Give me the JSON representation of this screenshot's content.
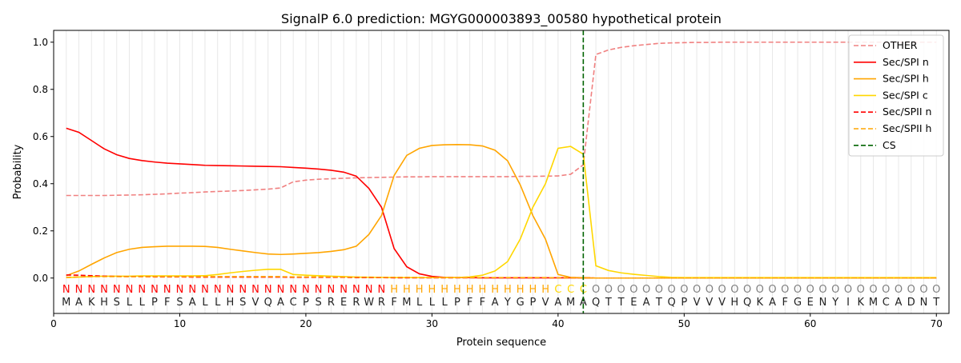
{
  "chart_data": {
    "type": "line",
    "title": "SignalP 6.0 prediction: MGYG000003893_00580 hypothetical protein",
    "xlabel": "Protein sequence",
    "ylabel": "Probability",
    "xlim": [
      0,
      71
    ],
    "ylim": [
      -0.15,
      1.05
    ],
    "xticks": [
      0,
      10,
      20,
      30,
      40,
      50,
      60,
      70
    ],
    "yticks": [
      0.0,
      0.2,
      0.4,
      0.6,
      0.8,
      1.0
    ],
    "ytick_labels": [
      "0.0",
      "0.2",
      "0.4",
      "0.6",
      "0.8",
      "1.0"
    ],
    "legend_position": "top-right",
    "sequence": [
      "M",
      "A",
      "K",
      "H",
      "S",
      "L",
      "L",
      "P",
      "F",
      "S",
      "A",
      "L",
      "L",
      "H",
      "S",
      "V",
      "Q",
      "A",
      "C",
      "P",
      "S",
      "R",
      "E",
      "R",
      "W",
      "R",
      "F",
      "M",
      "L",
      "L",
      "L",
      "P",
      "F",
      "F",
      "A",
      "Y",
      "G",
      "P",
      "V",
      "A",
      "M",
      "A",
      "Q",
      "T",
      "T",
      "E",
      "A",
      "T",
      "Q",
      "P",
      "V",
      "V",
      "V",
      "H",
      "Q",
      "K",
      "A",
      "F",
      "G",
      "E",
      "N",
      "Y",
      "I",
      "K",
      "M",
      "C",
      "A",
      "D",
      "N",
      "T"
    ],
    "labels": [
      "N",
      "N",
      "N",
      "N",
      "N",
      "N",
      "N",
      "N",
      "N",
      "N",
      "N",
      "N",
      "N",
      "N",
      "N",
      "N",
      "N",
      "N",
      "N",
      "N",
      "N",
      "N",
      "N",
      "N",
      "N",
      "N",
      "H",
      "H",
      "H",
      "H",
      "H",
      "H",
      "H",
      "H",
      "H",
      "H",
      "H",
      "H",
      "H",
      "C",
      "C",
      "C",
      "O",
      "O",
      "O",
      "O",
      "O",
      "O",
      "O",
      "O",
      "O",
      "O",
      "O",
      "O",
      "O",
      "O",
      "O",
      "O",
      "O",
      "O",
      "O",
      "O",
      "O",
      "O",
      "O",
      "O",
      "O",
      "O",
      "O",
      "O"
    ],
    "label_colors": {
      "N": "#ff0000",
      "H": "#ffa500",
      "C": "#ffd700",
      "O": "#808080"
    },
    "cs_position": 42,
    "series": [
      {
        "name": "OTHER",
        "color": "#f08080",
        "dash": true,
        "values": [
          0.35,
          0.35,
          0.35,
          0.35,
          0.351,
          0.352,
          0.353,
          0.355,
          0.357,
          0.36,
          0.362,
          0.365,
          0.367,
          0.369,
          0.371,
          0.374,
          0.377,
          0.382,
          0.408,
          0.415,
          0.419,
          0.421,
          0.423,
          0.425,
          0.426,
          0.427,
          0.428,
          0.429,
          0.429,
          0.43,
          0.43,
          0.43,
          0.43,
          0.43,
          0.43,
          0.43,
          0.431,
          0.431,
          0.432,
          0.433,
          0.44,
          0.48,
          0.948,
          0.967,
          0.978,
          0.985,
          0.99,
          0.995,
          0.997,
          0.998,
          0.999,
          0.999,
          1,
          1,
          1,
          1,
          1,
          1,
          1,
          1,
          1,
          1,
          1,
          1,
          1,
          1,
          1,
          1,
          1,
          1
        ]
      },
      {
        "name": "Sec/SPI n",
        "color": "#ff0000",
        "dash": false,
        "values": [
          0.635,
          0.618,
          0.583,
          0.548,
          0.523,
          0.507,
          0.498,
          0.492,
          0.487,
          0.484,
          0.481,
          0.478,
          0.477,
          0.476,
          0.475,
          0.474,
          0.473,
          0.472,
          0.469,
          0.466,
          0.462,
          0.457,
          0.449,
          0.432,
          0.38,
          0.3,
          0.125,
          0.048,
          0.018,
          0.007,
          0.003,
          0.002,
          0.002,
          0.001,
          0.001,
          0.001,
          0.001,
          0.001,
          0.001,
          0.001,
          0.001,
          0.001,
          0,
          0,
          0,
          0,
          0,
          0,
          0,
          0,
          0,
          0,
          0,
          0,
          0,
          0,
          0,
          0,
          0,
          0,
          0,
          0,
          0,
          0,
          0,
          0,
          0,
          0,
          0,
          0
        ]
      },
      {
        "name": "Sec/SPI h",
        "color": "#ffa500",
        "dash": false,
        "values": [
          0.01,
          0.03,
          0.058,
          0.085,
          0.108,
          0.122,
          0.13,
          0.133,
          0.135,
          0.135,
          0.135,
          0.134,
          0.13,
          0.122,
          0.115,
          0.108,
          0.102,
          0.1,
          0.102,
          0.105,
          0.108,
          0.113,
          0.12,
          0.135,
          0.185,
          0.265,
          0.435,
          0.52,
          0.55,
          0.562,
          0.565,
          0.566,
          0.565,
          0.56,
          0.542,
          0.497,
          0.395,
          0.265,
          0.165,
          0.015,
          0.003,
          0.001,
          0,
          0,
          0,
          0,
          0,
          0,
          0,
          0,
          0,
          0,
          0,
          0,
          0,
          0,
          0,
          0,
          0,
          0,
          0,
          0,
          0,
          0,
          0,
          0,
          0,
          0,
          0,
          0
        ]
      },
      {
        "name": "Sec/SPI c",
        "color": "#ffd700",
        "dash": false,
        "values": [
          0.002,
          0.004,
          0.006,
          0.008,
          0.008,
          0.008,
          0.009,
          0.009,
          0.009,
          0.009,
          0.009,
          0.01,
          0.015,
          0.022,
          0.028,
          0.033,
          0.037,
          0.037,
          0.015,
          0.012,
          0.01,
          0.008,
          0.006,
          0.004,
          0.003,
          0.003,
          0.002,
          0.002,
          0.002,
          0.002,
          0.002,
          0.002,
          0.005,
          0.012,
          0.03,
          0.07,
          0.165,
          0.3,
          0.4,
          0.55,
          0.558,
          0.525,
          0.052,
          0.032,
          0.022,
          0.016,
          0.011,
          0.006,
          0.003,
          0.002,
          0.002,
          0.002,
          0.002,
          0.002,
          0.002,
          0.002,
          0.002,
          0.002,
          0.002,
          0.002,
          0.002,
          0.002,
          0.002,
          0.002,
          0.002,
          0.002,
          0.002,
          0.002,
          0.002,
          0.002
        ]
      },
      {
        "name": "Sec/SPII n",
        "color": "#ff0000",
        "dash": true,
        "values": [
          0.013,
          0.012,
          0.01,
          0.008,
          0.007,
          0.006,
          0.006,
          0.005,
          0.005,
          0.005,
          0.004,
          0.004,
          0.004,
          0.004,
          0.004,
          0.004,
          0.004,
          0.004,
          0.003,
          0.003,
          0.003,
          0.003,
          0.003,
          0.002,
          0.002,
          0.002,
          0.001,
          0.001,
          0.001,
          0.001,
          0.001,
          0.001,
          0.001,
          0.001,
          0.001,
          0.001,
          0.001,
          0.001,
          0.001,
          0.001,
          0.001,
          0.001,
          0,
          0,
          0,
          0,
          0,
          0,
          0,
          0,
          0,
          0,
          0,
          0,
          0,
          0,
          0,
          0,
          0,
          0,
          0,
          0,
          0,
          0,
          0,
          0,
          0,
          0,
          0,
          0
        ]
      },
      {
        "name": "Sec/SPII h",
        "color": "#ffa500",
        "dash": true,
        "values": [
          0.003,
          0.005,
          0.006,
          0.006,
          0.006,
          0.006,
          0.006,
          0.006,
          0.006,
          0.006,
          0.006,
          0.006,
          0.006,
          0.006,
          0.006,
          0.006,
          0.006,
          0.006,
          0.005,
          0.005,
          0.005,
          0.005,
          0.004,
          0.004,
          0.004,
          0.003,
          0.003,
          0.003,
          0.002,
          0.002,
          0.002,
          0.002,
          0.002,
          0.002,
          0.002,
          0.002,
          0.002,
          0.002,
          0.002,
          0.001,
          0.001,
          0.001,
          0,
          0,
          0,
          0,
          0,
          0,
          0,
          0,
          0,
          0,
          0,
          0,
          0,
          0,
          0,
          0,
          0,
          0,
          0,
          0,
          0,
          0,
          0,
          0,
          0,
          0,
          0,
          0
        ]
      }
    ],
    "cs_legend": {
      "name": "CS",
      "color": "#006400"
    }
  }
}
